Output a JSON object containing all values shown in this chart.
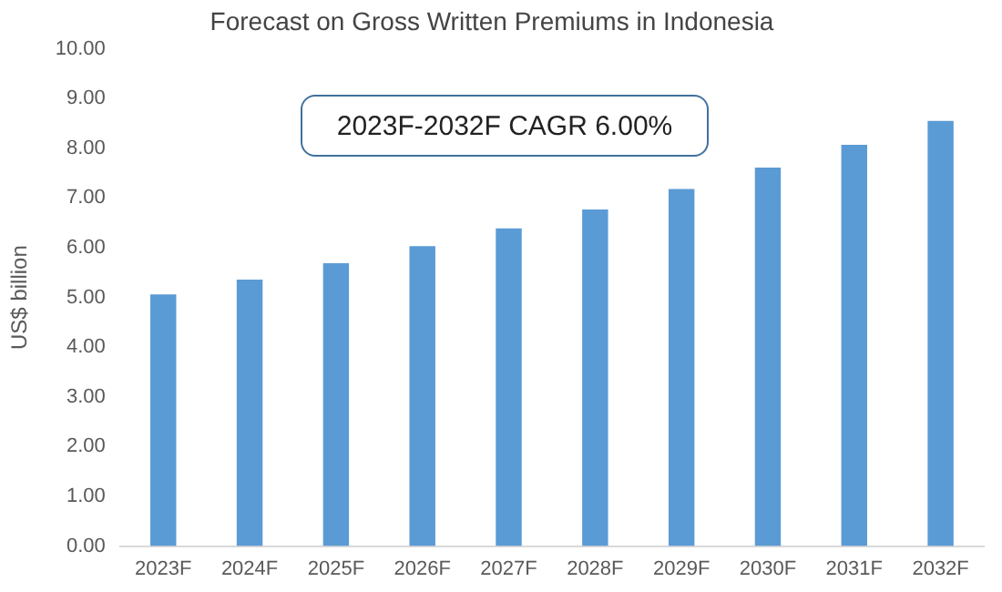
{
  "chart_data": {
    "type": "bar",
    "title": "Forecast on Gross Written Premiums in Indonesia",
    "ylabel": "US$ billion",
    "categories": [
      "2023F",
      "2024F",
      "2025F",
      "2026F",
      "2027F",
      "2028F",
      "2029F",
      "2030F",
      "2031F",
      "2032F"
    ],
    "values": [
      5.06,
      5.36,
      5.69,
      6.03,
      6.39,
      6.77,
      7.18,
      7.61,
      8.07,
      8.55
    ],
    "color": "#5b9bd5",
    "ylim": [
      0,
      10
    ],
    "yticks": [
      {
        "value": 0,
        "label": "0.00"
      },
      {
        "value": 1,
        "label": "1.00"
      },
      {
        "value": 2,
        "label": "2.00"
      },
      {
        "value": 3,
        "label": "3.00"
      },
      {
        "value": 4,
        "label": "4.00"
      },
      {
        "value": 5,
        "label": "5.00"
      },
      {
        "value": 6,
        "label": "6.00"
      },
      {
        "value": 7,
        "label": "7.00"
      },
      {
        "value": 8,
        "label": "8.00"
      },
      {
        "value": 9,
        "label": "9.00"
      },
      {
        "value": 10,
        "label": "10.00"
      }
    ],
    "grid": false,
    "legend": false,
    "annotations": [
      "2023F-2032F CAGR 6.00%"
    ]
  }
}
